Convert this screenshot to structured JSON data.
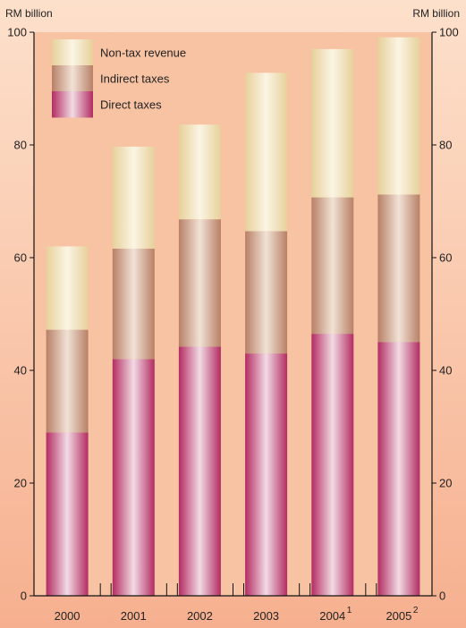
{
  "chart_data": {
    "type": "bar",
    "stacked": true,
    "title": "",
    "ylabel_left": "RM billion",
    "ylabel_right": "RM billion",
    "ylim": [
      0,
      100
    ],
    "yticks": [
      0,
      20,
      40,
      60,
      80,
      100
    ],
    "categories": [
      "2000",
      "2001",
      "2002",
      "2003",
      "2004",
      "2005"
    ],
    "category_superscripts": [
      "",
      "",
      "",
      "",
      "1",
      "2"
    ],
    "series": [
      {
        "name": "Direct taxes",
        "values": [
          29,
          42,
          44.2,
          43,
          46.5,
          45
        ]
      },
      {
        "name": "Indirect taxes",
        "values": [
          18.2,
          19.6,
          22.6,
          21.7,
          24.2,
          26.2
        ]
      },
      {
        "name": "Non-tax revenue",
        "values": [
          14.8,
          18.1,
          16.8,
          28.1,
          26.3,
          27.9
        ]
      }
    ],
    "legend_order": [
      "Non-tax revenue",
      "Indirect taxes",
      "Direct taxes"
    ],
    "legend_position": "top-left",
    "grid": false,
    "colors": {
      "Direct taxes": "#b8326a",
      "Indirect taxes": "#b9846a",
      "Non-tax revenue": "#ead8a4",
      "background": "#f7b896"
    }
  }
}
